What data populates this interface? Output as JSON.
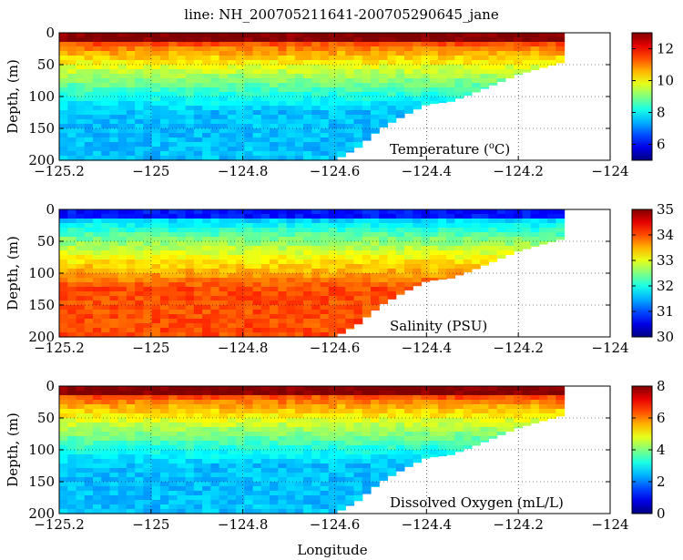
{
  "title": "line: NH_200705211641-200705290645_jane",
  "x_label": "Longitude",
  "y_label": "Depth, (m)",
  "chart_data": [
    {
      "type": "heatmap",
      "variable": "Temperature",
      "label_main": "Temperature (",
      "label_sup": "o",
      "label_end": "C)",
      "xlim": [
        -125.2,
        -124
      ],
      "ylim": [
        200,
        0
      ],
      "x_ticks": [
        "-125.2",
        "-125",
        "-124.8",
        "-124.6",
        "-124.4",
        "-124.2",
        "-124"
      ],
      "y_ticks": [
        "0",
        "50",
        "100",
        "150",
        "200"
      ],
      "colorbar": {
        "min": 5,
        "max": 13,
        "ticks": [
          "6",
          "8",
          "10",
          "12"
        ],
        "tick_values": [
          6,
          8,
          10,
          12
        ]
      },
      "surface_value": 12.5,
      "deep_value": 7.5,
      "colormap": "jet"
    },
    {
      "type": "heatmap",
      "variable": "Salinity",
      "label_main": "Salinity (PSU)",
      "label_sup": "",
      "label_end": "",
      "xlim": [
        -125.2,
        -124
      ],
      "ylim": [
        200,
        0
      ],
      "x_ticks": [
        "-125.2",
        "-125",
        "-124.8",
        "-124.6",
        "-124.4",
        "-124.2",
        "-124"
      ],
      "y_ticks": [
        "0",
        "50",
        "100",
        "150",
        "200"
      ],
      "colorbar": {
        "min": 30,
        "max": 35,
        "ticks": [
          "30",
          "31",
          "32",
          "33",
          "34",
          "35"
        ],
        "tick_values": [
          30,
          31,
          32,
          33,
          34,
          35
        ]
      },
      "surface_value": 31.0,
      "deep_value": 34.0,
      "colormap": "jet"
    },
    {
      "type": "heatmap",
      "variable": "Dissolved Oxygen",
      "label_main": "Dissolved Oxygen (mL/L)",
      "label_sup": "",
      "label_end": "",
      "xlim": [
        -125.2,
        -124
      ],
      "ylim": [
        200,
        0
      ],
      "x_ticks": [
        "-125.2",
        "-125",
        "-124.8",
        "-124.6",
        "-124.4",
        "-124.2",
        "-124"
      ],
      "y_ticks": [
        "0",
        "50",
        "100",
        "150",
        "200"
      ],
      "colorbar": {
        "min": 0,
        "max": 8,
        "ticks": [
          "0",
          "2",
          "4",
          "6",
          "8"
        ],
        "tick_values": [
          0,
          2,
          4,
          6,
          8
        ]
      },
      "surface_value": 7.5,
      "deep_value": 2.5,
      "colormap": "jet"
    }
  ],
  "section_extent": {
    "lon_start": -125.2,
    "lon_end": -124.1,
    "bottom_profile": [
      [
        -125.2,
        200
      ],
      [
        -124.6,
        200
      ],
      [
        -124.55,
        180
      ],
      [
        -124.5,
        150
      ],
      [
        -124.45,
        130
      ],
      [
        -124.4,
        112
      ],
      [
        -124.35,
        108
      ],
      [
        -124.3,
        95
      ],
      [
        -124.25,
        80
      ],
      [
        -124.2,
        65
      ],
      [
        -124.15,
        55
      ],
      [
        -124.1,
        45
      ],
      [
        -124.1,
        0
      ]
    ]
  }
}
